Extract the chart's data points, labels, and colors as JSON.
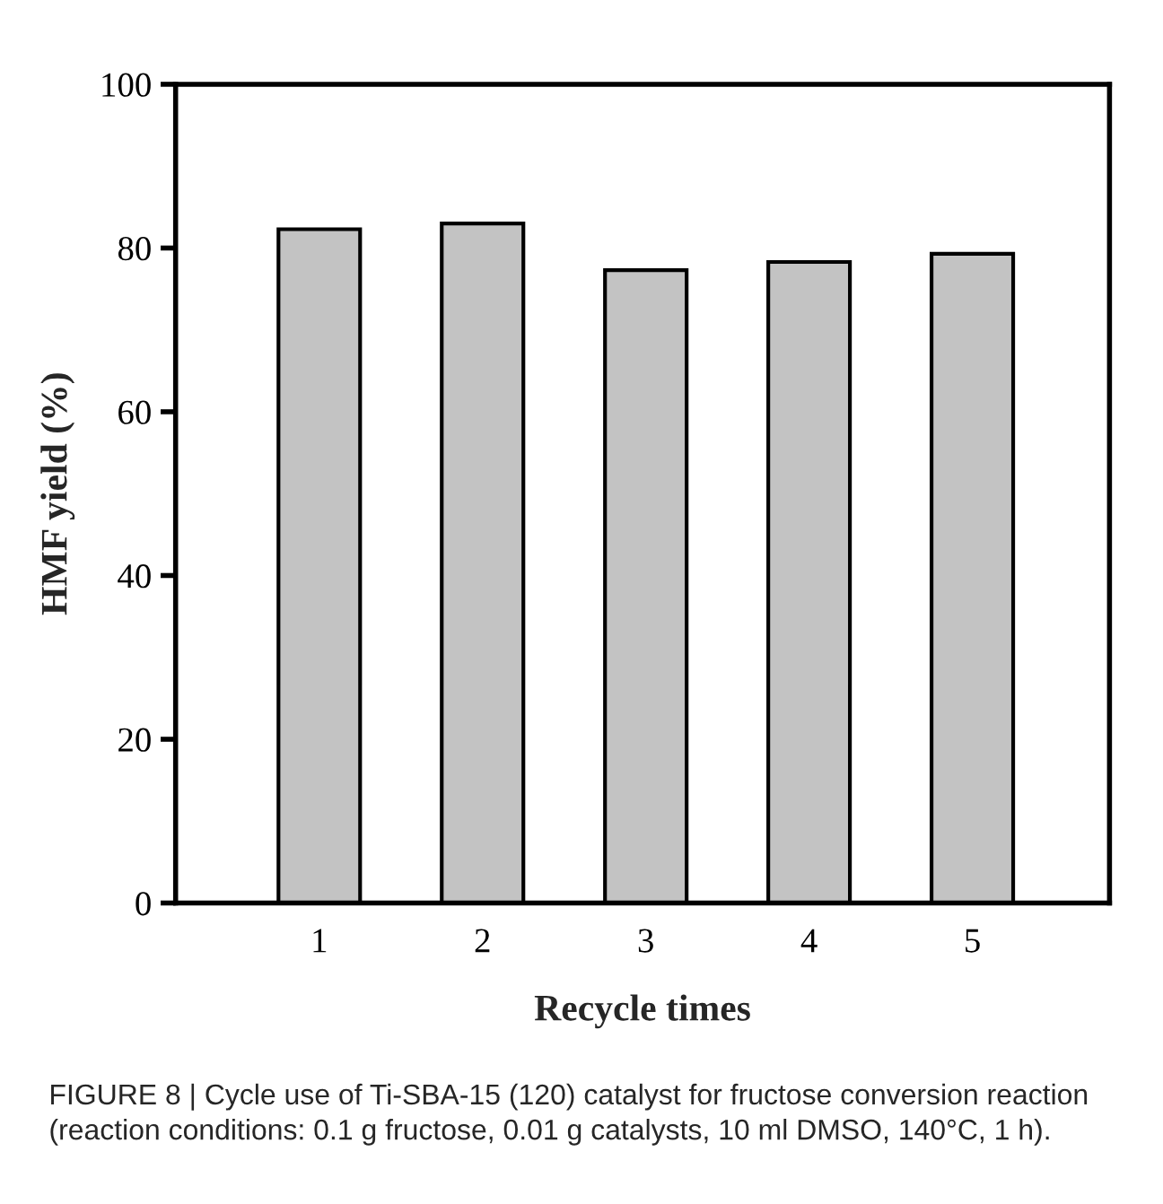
{
  "chart_data": {
    "type": "bar",
    "xlabel": "Recycle times",
    "ylabel": "HMF yield (%)",
    "categories": [
      "1",
      "2",
      "3",
      "4",
      "5"
    ],
    "values": [
      82.3,
      83.0,
      77.3,
      78.3,
      79.3
    ],
    "color": "#c3c3c3",
    "ylim": [
      0,
      100
    ],
    "yticks": [
      0,
      20,
      40,
      60,
      80,
      100
    ],
    "grid": false,
    "legend": false,
    "annotations": [
      "FIGURE 8 | Cycle use of Ti-SBA-15 (120) catalyst for fructose conversion reaction (reaction conditions: 0.1 g fructose, 0.01 g catalysts, 10 ml DMSO, 140°C, 1 h)."
    ]
  }
}
